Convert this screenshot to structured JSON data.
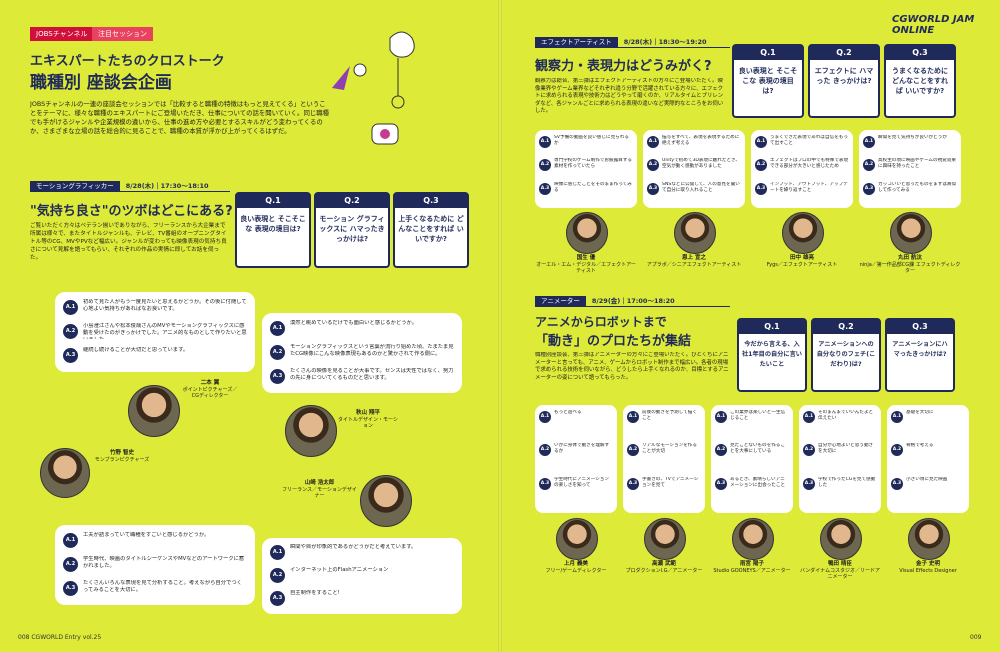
{
  "left": {
    "tag_channel": "JOBSチャンネル",
    "tag_session": "注目セッション",
    "kicker": "エキスパートたちのクロストーク",
    "title": "職種別 座談会企画",
    "intro": "JOBSチャンネルの一連の座談会セッションでは「比較すると職種の特徴はもっと見えてくる」ということをテーマに、様々な職種のエキスパートにご登場いただき、仕事についての話を聞いていく。同じ職種でも手がけるジャンルや企業規模の違いから、仕事の進め方や必要とするスキルがどう変わってくるのか、さまざまな立場の話を総合的に見ることで、職種の本質が浮かび上がってくるはずだ。",
    "section_label": "モーショングラフィッカー",
    "section_time": "8/28(木)｜17:30〜18:10",
    "headline": "\"気持ち良さ\"のツボはどこにある?",
    "headline_body": "ご覧いただく方々はベテラン揃いでありながら、フリーランスから大企業まで所属は様々で、またタイトルジャンルも、テレビ、TV番組のオープニングタイトル等のCG、MVやPVなど幅広い。ジャンルが変わっても映像表現の気持ち良さについて見解を語ってもらい、それぞれの作品の実情に即してお話を伺った。",
    "questions": [
      {
        "q": "Q.1",
        "text": "良い表現と そこそこな 表現の境目は?"
      },
      {
        "q": "Q.2",
        "text": "モーション グラフィックスに ハマったきっかけは?"
      },
      {
        "q": "Q.3",
        "text": "上手くなるために どんなことをすれば いいですか?"
      }
    ],
    "panel_a": {
      "answers": [
        {
          "a": "A.1",
          "text": "初めて見た人がもう一度見たいと思えるかどうか。その後に付随して心地よい気持ちがあればなお良いです。"
        },
        {
          "a": "A.2",
          "text": "小島澄江さんや松本俊哉さんのMVやモーショングラフィックスに感動を受けたのがきっかけでした。アニメ的なものとして作りたいと思いました。"
        },
        {
          "a": "A.3",
          "text": "継続し続けることが大切だと思っています。"
        }
      ],
      "name": "二本 翼",
      "role": "ポイントピクチャーズ／CGディレクター"
    },
    "panel_b": {
      "answers": [
        {
          "a": "A.1",
          "text": "漠然と眺めているだけでも面白いと感じるかどうか。"
        },
        {
          "a": "A.2",
          "text": "モーショングラフィックスという言葉が流行り始めた頃、たまたま見たCG映像にこんな映像表現もあるのかと驚かされて作る側に。"
        },
        {
          "a": "A.3",
          "text": "たくさんの映像を見ることが大事です。センスは天性ではなく、努力の先に身についてくるものだと思います。"
        }
      ],
      "name": "秋山 翔平",
      "role": "タイトルデザイン・モーション"
    },
    "panel_c": {
      "answers": [
        {
          "a": "A.1",
          "text": "工夫が詰まっていて職種をすごいと感じるかどうか。"
        },
        {
          "a": "A.2",
          "text": "学生時代、映画のタイトルシーケンスやMVなどのアートワークに惹かれました。"
        },
        {
          "a": "A.3",
          "text": "たくさんいろんな表現を見て分析すること。考えながら自分でつくってみることを大切に。"
        }
      ],
      "name": "竹野 智史",
      "role": "モンブランピクチャーズ"
    },
    "panel_d": {
      "answers": [
        {
          "a": "A.1",
          "text": "瞬間や目が印象的であるかどうかだと考えています。"
        },
        {
          "a": "A.2",
          "text": "インターネット上のFlashアニメーション"
        },
        {
          "a": "A.3",
          "text": "自主制作をすること!"
        }
      ],
      "name": "山崎 浩太郎",
      "role": "フリーランス／モーションデザイナー"
    },
    "folio": "008  CGWORLD Entry vol.25"
  },
  "right": {
    "logo": "CGWORLD JAM ONLINE",
    "section1_label": "エフェクトアーティスト",
    "section1_time": "8/28(木)｜18:30〜19:20",
    "headline1": "観察力・表現力はどうみがく?",
    "body1": "観察力は総合、第三弾はエフェクトアーティストの方々にご登場いただく。映像業界やゲーム業界などそれぞれ違う分野で活躍されている方々に、エフェクトに求められる表現や技術力はどうやって磨くのか、リアルタイムとプリレンダなど、各ジャンルごとに求められる表現の違いなど実際的なところをお伺いした。",
    "questions1": [
      {
        "q": "Q.1",
        "text": "良い表現と そこそこな 表現の境目は?"
      },
      {
        "q": "Q.2",
        "text": "エフェクトに ハマった きっかけは?"
      },
      {
        "q": "Q.3",
        "text": "うまくなるために どんなことをすれば いいですか?"
      }
    ],
    "people1": [
      {
        "name": "国生 優",
        "role": "オーエル・エム・デジタル／エフェクトアーティスト",
        "answers": [
          "SV予備の動画を良い感じに見られるか",
          "専門学校のゲーム制作でお披露目する素材を作っていたら",
          "映像に感じたことをそのまま作ってみる"
        ]
      },
      {
        "name": "恩上 宣之",
        "role": "アプラボ／シニアエフェクトアーティスト",
        "answers": [
          "描写をすべて、表現を表現するために絶えず考える",
          "Unityで初めて3D表現に触れたとき、空気が動く感動がありました",
          "SNSなどに公開して、人の意見を聞いて自分に取り入れること"
        ]
      },
      {
        "name": "田中 雄亮",
        "role": "Fygs／エフェクトアーティスト",
        "answers": [
          "うまくできた表現であれば自信をもって出すこと",
          "エフェクトはプロの中でも特殊で表現できる部分が大きいと感じたため",
          "インプット、アウトプット、アップデートを繰り返すこと"
        ]
      },
      {
        "name": "丸田 航汰",
        "role": "ninja／第一作品部CG課 エフェクトディレクター",
        "answers": [
          "瞬間を見て気持ちが良いかどうか",
          "高校生の頃に映画やゲームの視覚効果に興味を持ったこと",
          "カッコいいと思ったものをまずは真似して作ってみる"
        ]
      }
    ],
    "section2_label": "アニメーター",
    "section2_time": "8/29(金)｜17:00〜18:20",
    "headline2a": "アニメからロボットまで",
    "headline2b": "「動き」のプロたちが集結",
    "body2": "職種別座談会、第三弾はアニメーターの方々にご登場いただく。ひとくちにアニメーターと言っても、アニメ、ゲームからロボット制作まで幅広い。各者の現場で求められる技術を伺いながら、どうしたら上手くなれるのか、目標とするアニメーターの姿について語ってもらった。",
    "questions2": [
      {
        "q": "Q.1",
        "text": "今だから言える、入社1年目の自分に言いたいこと"
      },
      {
        "q": "Q.2",
        "text": "アニメーションへの自分なりのフェチ(こだわり)は?"
      },
      {
        "q": "Q.3",
        "text": "アニメーションにハマったきっかけは?"
      }
    ],
    "people2": [
      {
        "name": "上月 義美",
        "role": "フリー/ゲームディレクター",
        "answers": [
          "もっと遊べる",
          "いかに身体で動きを理解するか",
          "学生時代にアニメーションの楽しさを知って"
        ]
      },
      {
        "name": "高瀬 武範",
        "role": "プロダクションI.G／アニメーター",
        "answers": [
          "前後の動きを予測して描くこと",
          "リアルなモーションを作ることが大切",
          "手書きの、TVでアニメーションを見て"
        ]
      },
      {
        "name": "雨宮 陽子",
        "role": "Studio GOONEYS／アニメーター",
        "answers": [
          "この業界は楽しいと一生信じること",
          "見たことないものを作ることを大事にしている",
          "あるとき、素晴らしいアニメーションに出会ったこと"
        ]
      },
      {
        "name": "鴨田 晴臣",
        "role": "バンダイナムコスタジオ／リードアニメーター",
        "answers": [
          "そのまんまでいいんだよと伝えたい",
          "自分が心地よいと思う動きを大切に",
          "学校で作ったCGを見て感動した"
        ]
      },
      {
        "name": "金子 史明",
        "role": "Visual Effects Designer",
        "answers": [
          "基礎を大切に",
          "骨格で考える",
          "小さい頃に見た映画"
        ]
      }
    ],
    "folio": "009"
  }
}
